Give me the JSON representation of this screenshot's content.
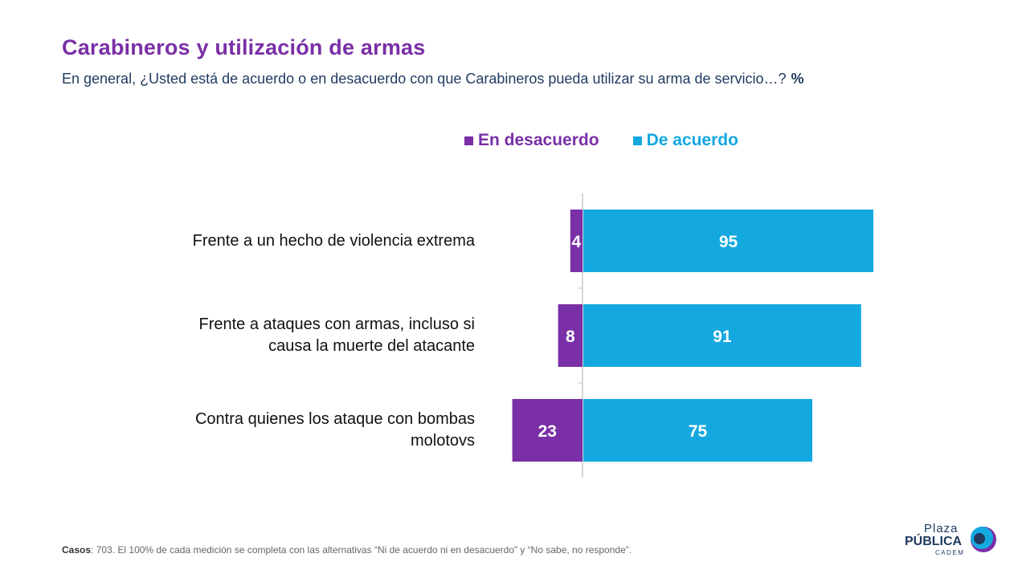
{
  "title": "Carabineros y utilización de armas",
  "subtitle": "En general, ¿Usted está de acuerdo o en desacuerdo con que Carabineros pueda utilizar su arma de servicio…?",
  "unit": "%",
  "legend": {
    "negative": "En desacuerdo",
    "positive": "De acuerdo"
  },
  "colors": {
    "negative": "#7a2fa6",
    "positive": "#14a8e0",
    "title": "#7a2fa6",
    "text_dark": "#1f3a5f"
  },
  "chart_data": {
    "type": "bar",
    "orientation": "horizontal-diverging",
    "categories": [
      [
        "Frente a un hecho de violencia extrema"
      ],
      [
        "Frente a ataques con armas, incluso si",
        "causa la muerte del atacante"
      ],
      [
        "Contra quienes los ataque con bombas",
        "molotovs"
      ]
    ],
    "series": [
      {
        "name": "En desacuerdo",
        "values": [
          4,
          8,
          23
        ]
      },
      {
        "name": "De acuerdo",
        "values": [
          95,
          91,
          75
        ]
      }
    ],
    "legend_position": "top",
    "grid": false
  },
  "footnote": {
    "casos_label": "Casos",
    "text": ": 703. El 100% de cada medición se completa con las alternativas “Ni de acuerdo ni en desacuerdo” y “No sabe, no responde”."
  },
  "logo": {
    "line1": "Plaza",
    "line2": "PÚBLICA",
    "line3": "CADEM"
  }
}
